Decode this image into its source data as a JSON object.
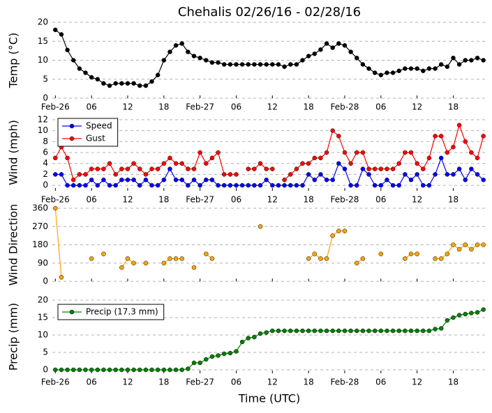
{
  "chart_data": [
    {
      "type": "line",
      "title": "Chehalis 02/26/16 - 02/28/16",
      "ylabel": "Temp (°C)",
      "x": [
        0,
        1,
        2,
        3,
        4,
        5,
        6,
        7,
        8,
        9,
        10,
        11,
        12,
        13,
        14,
        15,
        16,
        17,
        18,
        19,
        20,
        21,
        22,
        23,
        24,
        25,
        26,
        27,
        28,
        29,
        30,
        31,
        32,
        33,
        34,
        35,
        36,
        37,
        38,
        39,
        40,
        41,
        42,
        43,
        44,
        45,
        46,
        47,
        48,
        49,
        50,
        51,
        52,
        53,
        54,
        55,
        56,
        57,
        58,
        59,
        60,
        61,
        62,
        63,
        64,
        65,
        66,
        67,
        68,
        69,
        70,
        71
      ],
      "series": [
        {
          "color": "#000000",
          "values": [
            18,
            16.8,
            12.7,
            10,
            7.8,
            6.7,
            5.5,
            5,
            3.9,
            3.3,
            3.9,
            3.9,
            3.9,
            3.9,
            3.3,
            3.3,
            4.4,
            6.1,
            10,
            12.2,
            13.9,
            14.4,
            12.2,
            11.1,
            10.6,
            10,
            9.4,
            9.4,
            8.9,
            8.9,
            8.9,
            8.9,
            8.9,
            8.9,
            8.9,
            8.9,
            8.9,
            8.9,
            8.3,
            8.9,
            8.9,
            10,
            11.1,
            11.7,
            12.8,
            14.4,
            13.3,
            14.4,
            13.9,
            12.2,
            10.6,
            8.9,
            7.8,
            6.7,
            6.1,
            6.7,
            6.7,
            7.2,
            7.8,
            7.8,
            7.8,
            7.2,
            7.8,
            7.8,
            8.9,
            8.3,
            10.6,
            8.9,
            10,
            10,
            10.6,
            10
          ]
        }
      ],
      "xlim": [
        -0.5,
        71.5
      ],
      "ylim": [
        0,
        20
      ],
      "yticks": [
        0,
        5,
        10,
        15,
        20
      ],
      "xticks": [
        {
          "value": 0,
          "label": "Feb-26"
        },
        {
          "value": 6,
          "label": "06"
        },
        12,
        18,
        {
          "value": 24,
          "label": "Feb-27"
        },
        {
          "value": 30,
          "label": "06"
        },
        {
          "value": 36,
          "label": "12"
        },
        {
          "value": 42,
          "label": "18"
        },
        {
          "value": 48,
          "label": "Feb-28"
        },
        {
          "value": 54,
          "label": "06"
        },
        {
          "value": 60,
          "label": "12"
        },
        {
          "value": 66,
          "label": "18"
        }
      ],
      "grid": true
    },
    {
      "type": "line",
      "ylabel": "Wind (mph)",
      "legend": "upper left",
      "x": [
        0,
        1,
        2,
        3,
        4,
        5,
        6,
        7,
        8,
        9,
        10,
        11,
        12,
        13,
        14,
        15,
        16,
        17,
        18,
        19,
        20,
        21,
        22,
        23,
        24,
        25,
        26,
        27,
        28,
        29,
        30,
        31,
        32,
        33,
        34,
        35,
        36,
        37,
        38,
        39,
        40,
        41,
        42,
        43,
        44,
        45,
        46,
        47,
        48,
        49,
        50,
        51,
        52,
        53,
        54,
        55,
        56,
        57,
        58,
        59,
        60,
        61,
        62,
        63,
        64,
        65,
        66,
        67,
        68,
        69,
        70,
        71
      ],
      "series": [
        {
          "name": "Speed",
          "color": "#0000ff",
          "values": [
            2,
            2,
            0,
            0,
            0,
            0,
            1,
            0,
            1,
            0,
            0,
            1,
            1,
            1,
            0,
            1,
            0,
            0,
            1,
            3,
            1,
            1,
            0,
            1,
            0,
            1,
            1,
            0,
            0,
            0,
            0,
            0,
            0,
            0,
            0,
            1,
            0,
            0,
            0,
            0,
            0,
            0,
            2,
            1,
            2,
            1,
            1,
            4,
            3,
            0,
            0,
            3,
            2,
            0,
            0,
            1,
            0,
            0,
            2,
            1,
            2,
            0,
            0,
            2,
            5,
            2,
            2,
            3,
            1,
            3,
            2,
            1
          ]
        },
        {
          "name": "Gust",
          "color": "#ff0000",
          "values": [
            5,
            7,
            5,
            1,
            2,
            2,
            3,
            3,
            3,
            4,
            2,
            3,
            3,
            4,
            3,
            2,
            3,
            3,
            4,
            5,
            4,
            4,
            3,
            3,
            6,
            4,
            5,
            6,
            2,
            2,
            2,
            null,
            3,
            3,
            4,
            3,
            3,
            null,
            1,
            2,
            3,
            4,
            4,
            5,
            5,
            6,
            10,
            9,
            6,
            4,
            6,
            6,
            3,
            3,
            3,
            3,
            3,
            4,
            6,
            6,
            4,
            3,
            5,
            9,
            9,
            6,
            7,
            11,
            8,
            6,
            5,
            9
          ]
        }
      ],
      "xlim": [
        -0.5,
        71.5
      ],
      "ylim": [
        -1,
        13
      ],
      "yticks": [
        0,
        2,
        4,
        6,
        8,
        10,
        12
      ],
      "xticks": [
        {
          "value": 0,
          "label": "Feb-26"
        },
        {
          "value": 6,
          "label": "06"
        },
        12,
        18,
        {
          "value": 24,
          "label": "Feb-27"
        },
        {
          "value": 30,
          "label": "06"
        },
        {
          "value": 36,
          "label": "12"
        },
        {
          "value": 42,
          "label": "18"
        },
        {
          "value": 48,
          "label": "Feb-28"
        },
        {
          "value": 54,
          "label": "06"
        },
        {
          "value": 60,
          "label": "12"
        },
        {
          "value": 66,
          "label": "18"
        }
      ],
      "grid": true
    },
    {
      "type": "line",
      "ylabel": "Wind Direction",
      "x": [
        0,
        1,
        2,
        3,
        4,
        5,
        6,
        7,
        8,
        9,
        10,
        11,
        12,
        13,
        14,
        15,
        16,
        17,
        18,
        19,
        20,
        21,
        22,
        23,
        24,
        25,
        26,
        27,
        28,
        29,
        30,
        31,
        32,
        33,
        34,
        35,
        36,
        37,
        38,
        39,
        40,
        41,
        42,
        43,
        44,
        45,
        46,
        47,
        48,
        49,
        50,
        51,
        52,
        53,
        54,
        55,
        56,
        57,
        58,
        59,
        60,
        61,
        62,
        63,
        64,
        65,
        66,
        67,
        68,
        69,
        70,
        71
      ],
      "series": [
        {
          "color": "#ffa500",
          "values": [
            360,
            20,
            null,
            null,
            null,
            null,
            112,
            null,
            135,
            null,
            null,
            68,
            112,
            90,
            null,
            90,
            null,
            null,
            90,
            112,
            112,
            112,
            null,
            68,
            null,
            135,
            112,
            null,
            null,
            null,
            null,
            null,
            null,
            null,
            270,
            null,
            null,
            null,
            null,
            null,
            null,
            null,
            112,
            135,
            112,
            112,
            225,
            248,
            248,
            null,
            90,
            112,
            null,
            null,
            135,
            null,
            null,
            null,
            112,
            135,
            135,
            null,
            null,
            112,
            112,
            135,
            180,
            158,
            180,
            158,
            180,
            180
          ]
        }
      ],
      "xlim": [
        -0.5,
        71.5
      ],
      "ylim": [
        0,
        360
      ],
      "yticks": [
        0,
        90,
        180,
        270,
        360
      ],
      "xticks": [
        0,
        6,
        12,
        18,
        24,
        30,
        36,
        42,
        48,
        54,
        60,
        66
      ],
      "grid": true
    },
    {
      "type": "line",
      "ylabel": "Precip (mm)",
      "xlabel": "Time (UTC)",
      "legend": "upper left",
      "x": [
        0,
        1,
        2,
        3,
        4,
        5,
        6,
        7,
        8,
        9,
        10,
        11,
        12,
        13,
        14,
        15,
        16,
        17,
        18,
        19,
        20,
        21,
        22,
        23,
        24,
        25,
        26,
        27,
        28,
        29,
        30,
        31,
        32,
        33,
        34,
        35,
        36,
        37,
        38,
        39,
        40,
        41,
        42,
        43,
        44,
        45,
        46,
        47,
        48,
        49,
        50,
        51,
        52,
        53,
        54,
        55,
        56,
        57,
        58,
        59,
        60,
        61,
        62,
        63,
        64,
        65,
        66,
        67,
        68,
        69,
        70,
        71
      ],
      "series": [
        {
          "name": "Precip (17.3 mm)",
          "color": "#008000",
          "values": [
            0,
            0,
            0,
            0,
            0,
            0,
            0,
            0,
            0,
            0,
            0,
            0,
            0,
            0,
            0,
            0,
            0,
            0,
            0,
            0,
            0,
            0,
            0.3,
            2,
            2,
            3,
            3.8,
            4.1,
            4.6,
            4.8,
            5.3,
            8,
            9.1,
            9.4,
            10.4,
            10.7,
            11.2,
            11.2,
            11.2,
            11.2,
            11.2,
            11.2,
            11.2,
            11.2,
            11.2,
            11.2,
            11.2,
            11.2,
            11.2,
            11.2,
            11.2,
            11.2,
            11.2,
            11.2,
            11.2,
            11.2,
            11.2,
            11.2,
            11.2,
            11.2,
            11.2,
            11.2,
            11.2,
            11.7,
            11.9,
            14.2,
            15,
            15.7,
            16,
            16.3,
            16.5,
            17.3
          ]
        }
      ],
      "xlim": [
        -0.5,
        71.5
      ],
      "ylim": [
        -1,
        20
      ],
      "yticks": [
        0,
        5,
        10,
        15,
        20
      ],
      "xticks": [
        {
          "value": 0,
          "label": "Feb-26"
        },
        {
          "value": 6,
          "label": "06"
        },
        12,
        18,
        {
          "value": 24,
          "label": "Feb-27"
        },
        {
          "value": 30,
          "label": "06"
        },
        {
          "value": 36,
          "label": "12"
        },
        {
          "value": 42,
          "label": "18"
        },
        {
          "value": 48,
          "label": "Feb-28"
        },
        {
          "value": 54,
          "label": "06"
        },
        {
          "value": 60,
          "label": "12"
        },
        {
          "value": 66,
          "label": "18"
        }
      ],
      "grid": true
    }
  ]
}
